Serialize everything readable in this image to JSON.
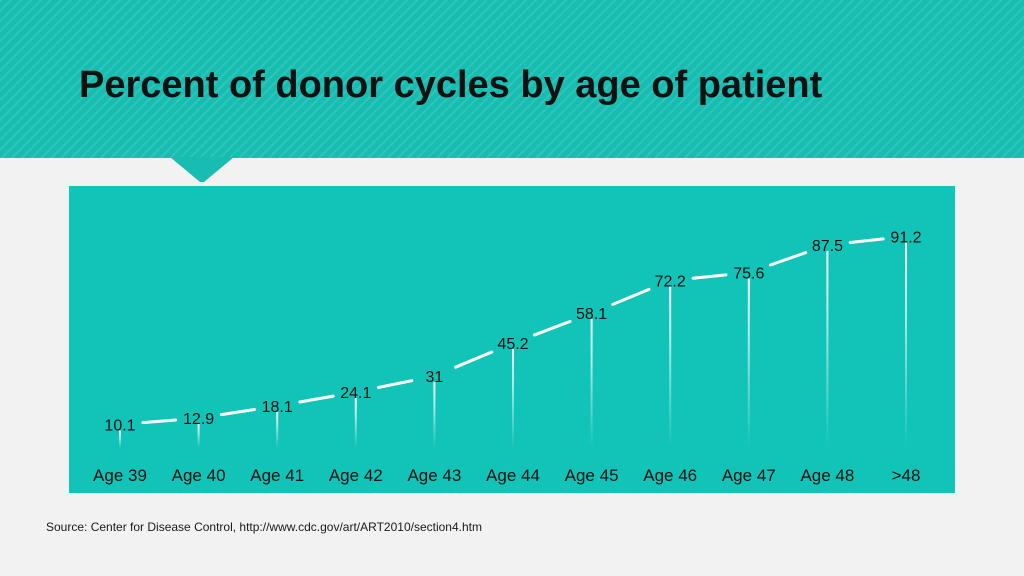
{
  "slide": {
    "title": "Percent of donor cycles by age of patient",
    "source": "Source: Center for Disease Control, http://www.cdc.gov/art/ART2010/section4.htm"
  },
  "colors": {
    "header_bg": "#17bdb1",
    "chart_bg": "#12c4b7",
    "line": "#ffffff",
    "label_text": "#111111"
  },
  "chart_data": {
    "type": "line",
    "title": "",
    "xlabel": "",
    "ylabel": "",
    "categories": [
      "Age 39",
      "Age 40",
      "Age 41",
      "Age 42",
      "Age 43",
      "Age 44",
      "Age 45",
      "Age 46",
      "Age 47",
      "Age 48",
      ">48"
    ],
    "series": [
      {
        "values": [
          10.1,
          12.9,
          18.1,
          24.1,
          31,
          45.2,
          58.1,
          72.2,
          75.6,
          87.5,
          91.2
        ]
      }
    ],
    "value_labels": [
      "10.1",
      "12.9",
      "18.1",
      "24.1",
      "31",
      "45.2",
      "58.1",
      "72.2",
      "75.6",
      "87.5",
      "91.2"
    ],
    "ylim": [
      0,
      100
    ],
    "grid": false,
    "legend": "none",
    "drop_lines": true
  }
}
